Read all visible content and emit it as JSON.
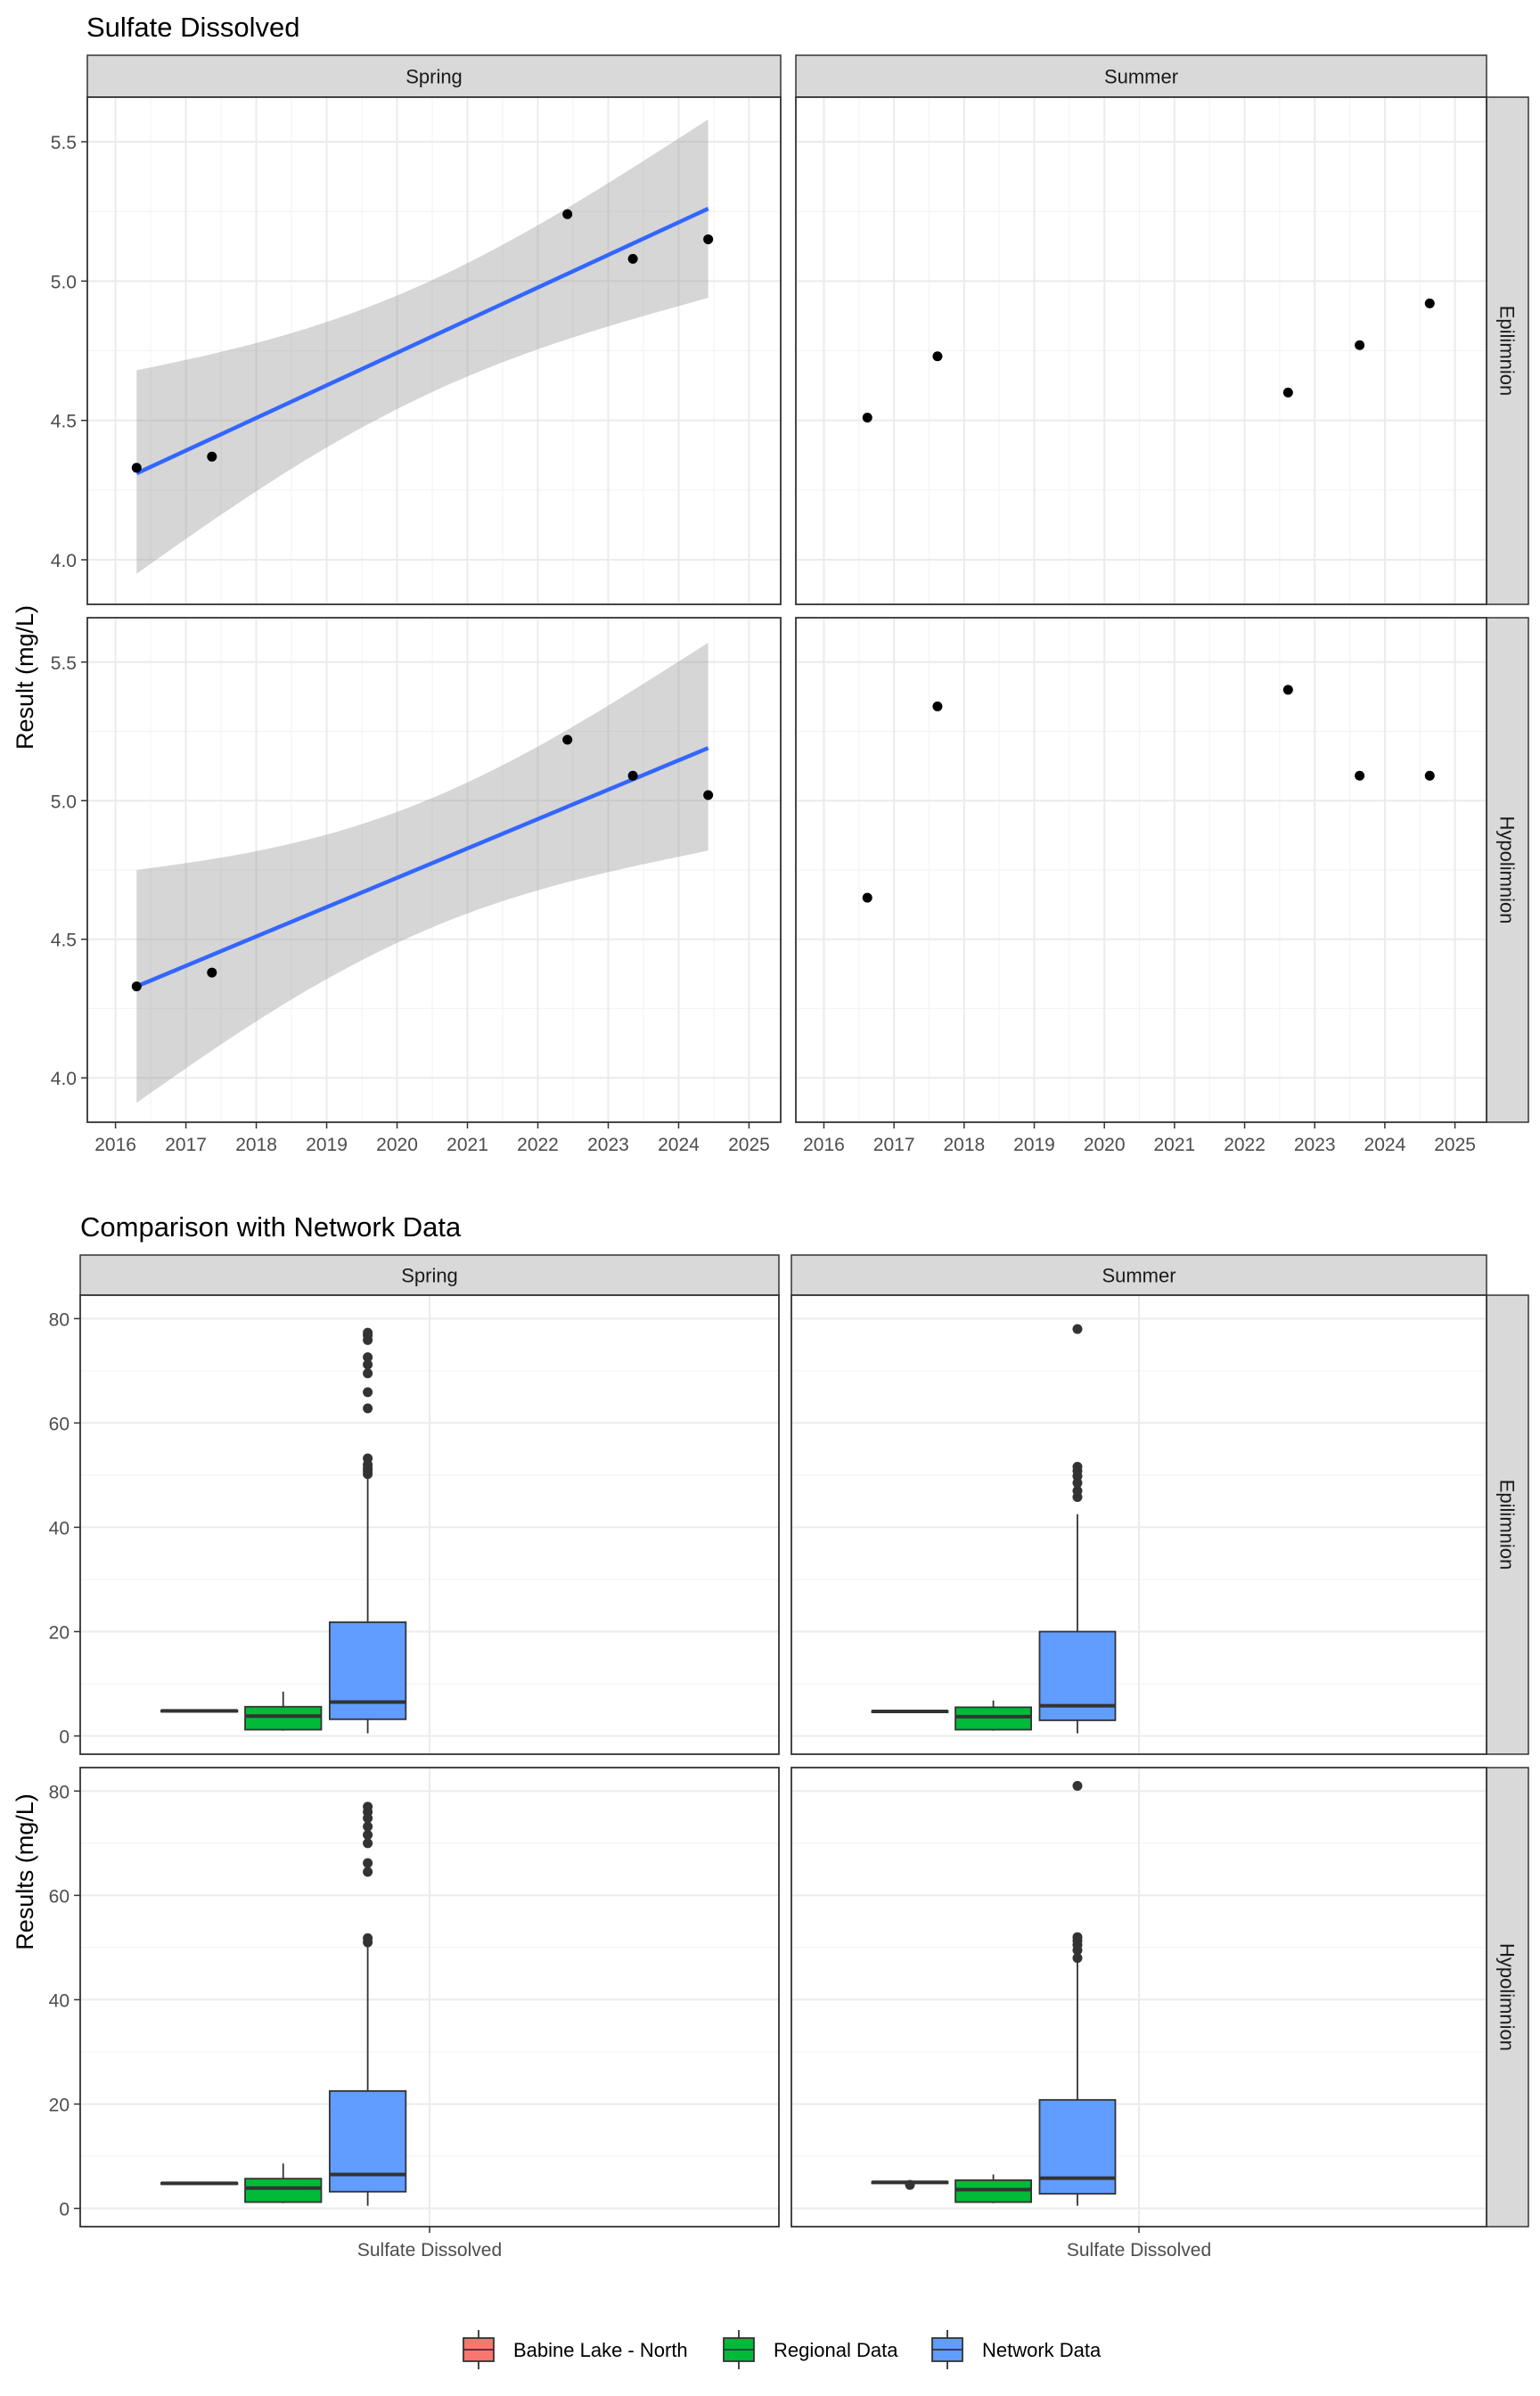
{
  "chart_data": [
    {
      "type": "scatter",
      "title": "Sulfate Dissolved",
      "ylabel": "Result (mg/L)",
      "xlabel": "",
      "x_ticks": [
        "2016",
        "2017",
        "2018",
        "2019",
        "2020",
        "2021",
        "2022",
        "2023",
        "2024",
        "2025"
      ],
      "y_ticks": [
        "4.0",
        "4.5",
        "5.0",
        "5.5"
      ],
      "xlim": [
        2015.6,
        2025.45
      ],
      "ylim": [
        3.84,
        5.66
      ],
      "grid": true,
      "columns": [
        "Spring",
        "Summer"
      ],
      "rows": [
        "Epilimnion",
        "Hypolimnion"
      ],
      "panels": [
        {
          "col": "Spring",
          "row": "Epilimnion",
          "points": [
            [
              2016.3,
              4.33
            ],
            [
              2017.37,
              4.37
            ],
            [
              2022.42,
              5.24
            ],
            [
              2023.35,
              5.08
            ],
            [
              2024.42,
              5.15
            ]
          ],
          "trend": {
            "x": [
              2016.3,
              2024.42
            ],
            "y": [
              4.31,
              5.26
            ]
          },
          "ci_lower": [
            3.95,
            4.94
          ],
          "ci_upper": [
            4.68,
            5.58
          ]
        },
        {
          "col": "Summer",
          "row": "Epilimnion",
          "points": [
            [
              2016.62,
              4.51
            ],
            [
              2017.62,
              4.73
            ],
            [
              2022.62,
              4.6
            ],
            [
              2023.64,
              4.77
            ],
            [
              2024.64,
              4.92
            ]
          ]
        },
        {
          "col": "Spring",
          "row": "Hypolimnion",
          "points": [
            [
              2016.3,
              4.33
            ],
            [
              2017.37,
              4.38
            ],
            [
              2022.42,
              5.22
            ],
            [
              2023.35,
              5.09
            ],
            [
              2024.42,
              5.02
            ]
          ],
          "trend": {
            "x": [
              2016.3,
              2024.42
            ],
            "y": [
              4.33,
              5.19
            ]
          },
          "ci_lower": [
            3.91,
            4.82
          ],
          "ci_upper": [
            4.75,
            5.57
          ]
        },
        {
          "col": "Summer",
          "row": "Hypolimnion",
          "points": [
            [
              2016.62,
              4.65
            ],
            [
              2017.62,
              5.34
            ],
            [
              2022.62,
              5.4
            ],
            [
              2023.64,
              5.09
            ],
            [
              2024.64,
              5.09
            ]
          ]
        }
      ]
    },
    {
      "type": "box",
      "title": "Comparison with Network Data",
      "ylabel": "Results (mg/L)",
      "xlabel": "",
      "categories": [
        "Sulfate Dissolved"
      ],
      "y_ticks": [
        "0",
        "20",
        "40",
        "60",
        "80"
      ],
      "ylim": [
        -3.5,
        84.5
      ],
      "grid": true,
      "columns": [
        "Spring",
        "Summer"
      ],
      "rows": [
        "Epilimnion",
        "Hypolimnion"
      ],
      "legend": {
        "position": "bottom",
        "items": [
          {
            "label": "Babine Lake - North",
            "color": "#F8766D"
          },
          {
            "label": "Regional Data",
            "color": "#00BA38"
          },
          {
            "label": "Network Data",
            "color": "#619CFF"
          }
        ]
      },
      "panels": [
        {
          "col": "Spring",
          "row": "Epilimnion",
          "boxes": [
            {
              "series": "Babine Lake - North",
              "min": 4.6,
              "q1": 4.7,
              "median": 4.8,
              "q3": 4.9,
              "max": 5.0,
              "outliers": []
            },
            {
              "series": "Regional Data",
              "min": 1.0,
              "q1": 1.2,
              "median": 3.8,
              "q3": 5.6,
              "max": 8.5,
              "outliers": []
            },
            {
              "series": "Network Data",
              "min": 0.5,
              "q1": 3.2,
              "median": 6.5,
              "q3": 21.8,
              "max": 49.5,
              "outliers": [
                50.2,
                50.8,
                51.3,
                52.0,
                53.2,
                62.8,
                65.9,
                69.5,
                71.2,
                72.6,
                75.9,
                76.8,
                77.3
              ]
            }
          ]
        },
        {
          "col": "Summer",
          "row": "Epilimnion",
          "boxes": [
            {
              "series": "Babine Lake - North",
              "min": 4.5,
              "q1": 4.6,
              "median": 4.7,
              "q3": 4.8,
              "max": 4.9,
              "outliers": []
            },
            {
              "series": "Regional Data",
              "min": 1.0,
              "q1": 1.2,
              "median": 3.7,
              "q3": 5.5,
              "max": 6.8,
              "outliers": []
            },
            {
              "series": "Network Data",
              "min": 0.5,
              "q1": 3.0,
              "median": 5.8,
              "q3": 20.0,
              "max": 42.5,
              "outliers": [
                45.8,
                47.0,
                48.5,
                49.8,
                50.8,
                51.6,
                78.0
              ]
            }
          ]
        },
        {
          "col": "Spring",
          "row": "Hypolimnion",
          "boxes": [
            {
              "series": "Babine Lake - North",
              "min": 4.6,
              "q1": 4.7,
              "median": 4.8,
              "q3": 4.9,
              "max": 5.0,
              "outliers": []
            },
            {
              "series": "Regional Data",
              "min": 1.0,
              "q1": 1.2,
              "median": 3.9,
              "q3": 5.7,
              "max": 8.6,
              "outliers": []
            },
            {
              "series": "Network Data",
              "min": 0.5,
              "q1": 3.2,
              "median": 6.5,
              "q3": 22.5,
              "max": 50.5,
              "outliers": [
                51.0,
                51.8,
                64.5,
                66.2,
                70.0,
                71.6,
                73.2,
                74.8,
                76.0,
                77.0
              ]
            }
          ]
        },
        {
          "col": "Summer",
          "row": "Hypolimnion",
          "boxes": [
            {
              "series": "Babine Lake - North",
              "min": 4.7,
              "q1": 4.8,
              "median": 5.0,
              "q3": 5.1,
              "max": 5.2,
              "outliers": [
                4.5
              ]
            },
            {
              "series": "Regional Data",
              "min": 1.0,
              "q1": 1.2,
              "median": 3.6,
              "q3": 5.4,
              "max": 6.5,
              "outliers": []
            },
            {
              "series": "Network Data",
              "min": 0.5,
              "q1": 2.8,
              "median": 5.8,
              "q3": 20.8,
              "max": 47.5,
              "outliers": [
                48.0,
                49.5,
                50.5,
                51.3,
                52.0,
                81.0
              ]
            }
          ]
        }
      ]
    }
  ]
}
